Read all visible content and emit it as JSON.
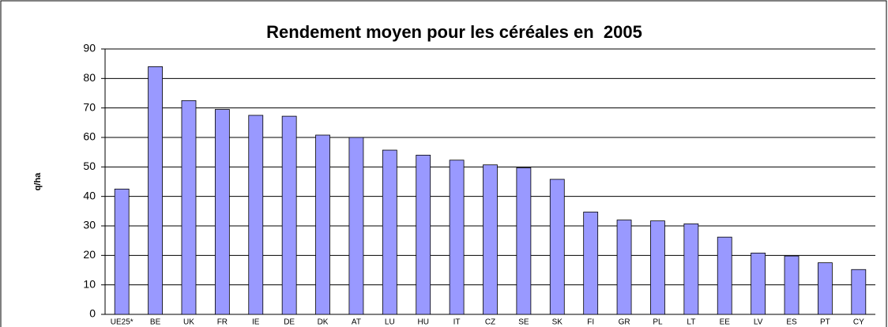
{
  "chart_data": {
    "type": "bar",
    "title": "Rendement moyen pour les céréales en  2005",
    "y_label": "q/ha",
    "categories": [
      "UE25*",
      "BE",
      "UK",
      "FR",
      "IE",
      "DE",
      "DK",
      "AT",
      "LU",
      "HU",
      "IT",
      "CZ",
      "SE",
      "SK",
      "FI",
      "GR",
      "PL",
      "LT",
      "EE",
      "LV",
      "ES",
      "PT",
      "CY"
    ],
    "values": [
      42.5,
      84,
      72.5,
      69.5,
      67.5,
      67.2,
      60.8,
      60,
      55.7,
      54,
      52.3,
      50.7,
      49.7,
      45.8,
      34.7,
      32,
      31.7,
      30.7,
      26.2,
      20.8,
      19.8,
      17.5,
      15.2
    ],
    "color": "#9999ff",
    "ylim": [
      0,
      90
    ],
    "yticks": [
      0,
      10,
      20,
      30,
      40,
      50,
      60,
      70,
      80,
      90
    ],
    "grid": true
  }
}
